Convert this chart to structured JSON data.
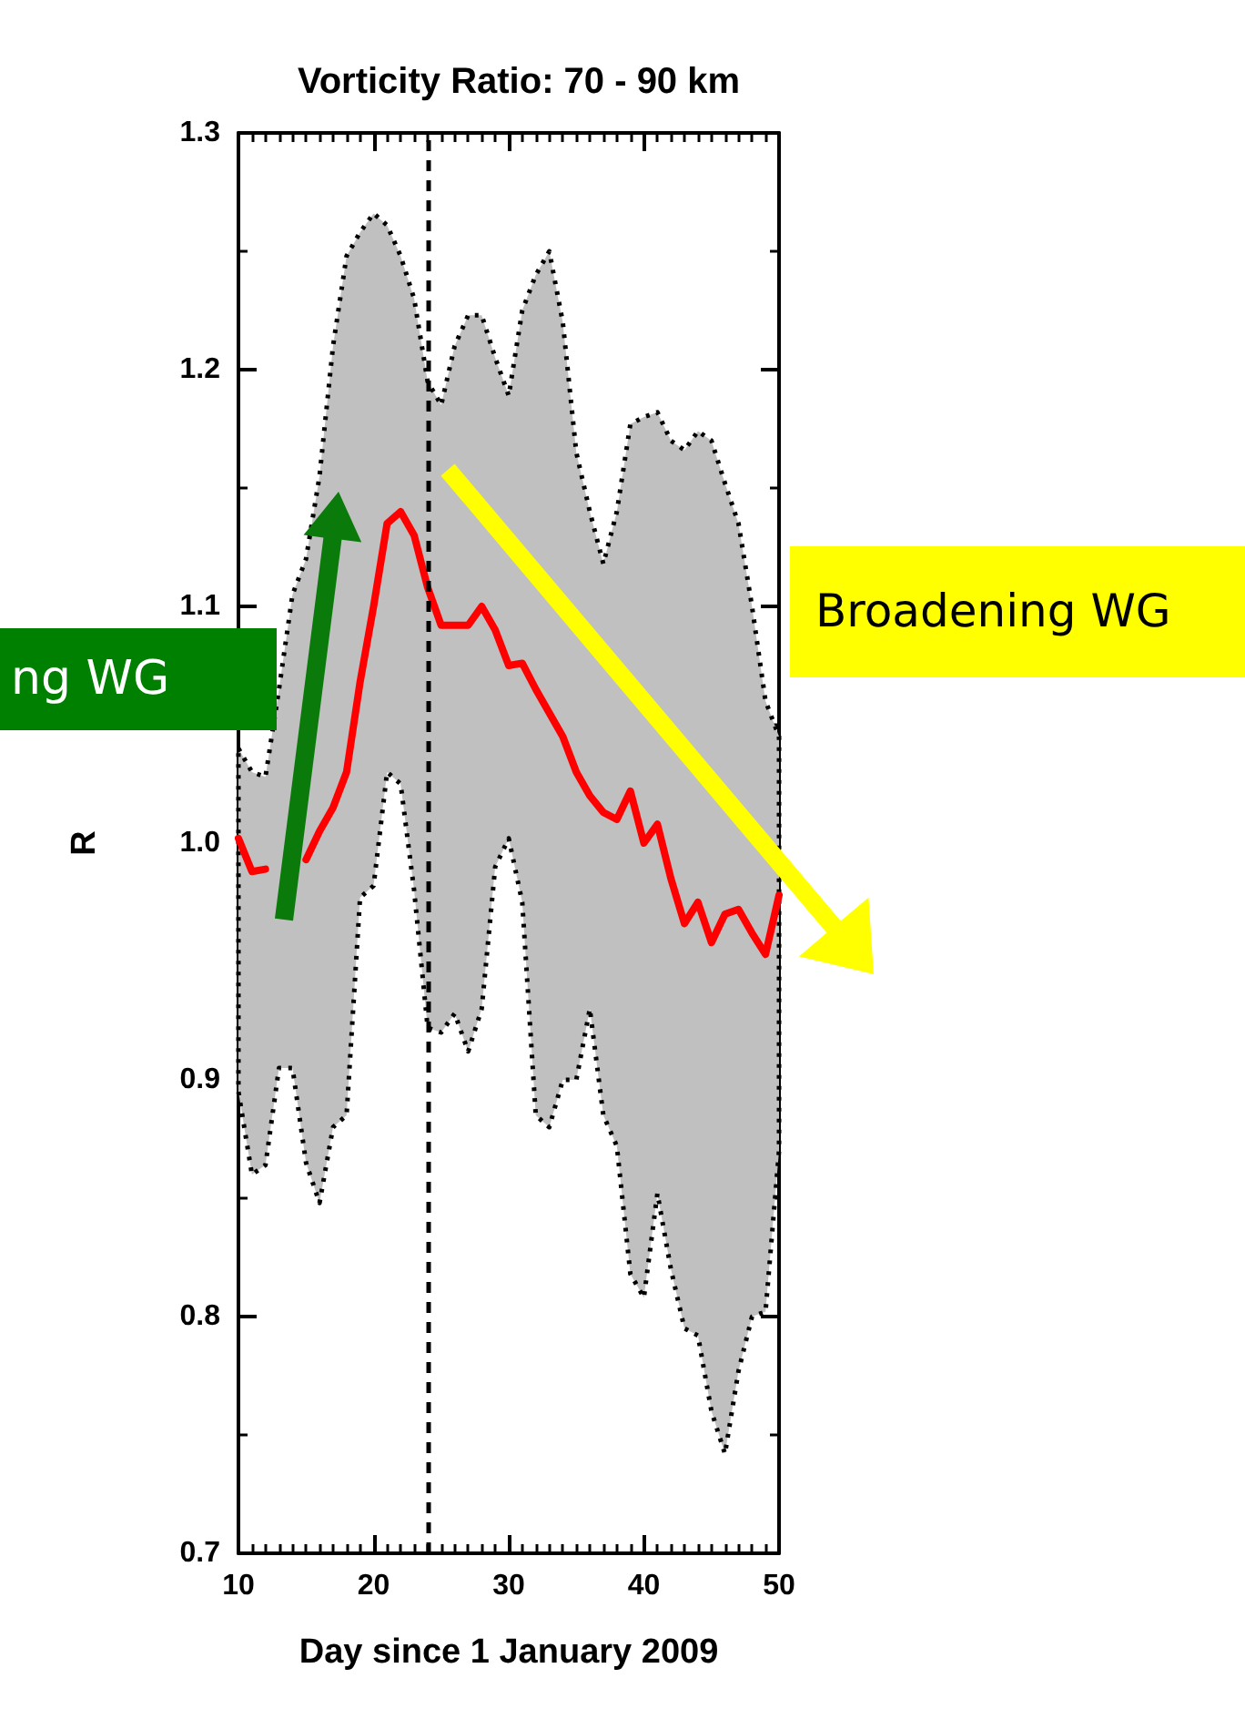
{
  "chart_data": {
    "type": "line",
    "title": "Vorticity Ratio: 70 - 90 km",
    "xlabel": "Day since 1 January 2009",
    "ylabel": "R",
    "x": [
      10,
      11,
      12,
      13,
      14,
      15,
      16,
      17,
      18,
      19,
      20,
      21,
      22,
      23,
      24,
      25,
      26,
      27,
      28,
      29,
      30,
      31,
      32,
      33,
      34,
      35,
      36,
      37,
      38,
      39,
      40,
      41,
      42,
      43,
      44,
      45,
      46,
      47,
      48,
      49,
      50
    ],
    "series": [
      {
        "color": "#ff0000",
        "line_style": "solid",
        "values": [
          1.002,
          0.988,
          0.989,
          null,
          null,
          0.993,
          1.005,
          1.015,
          1.03,
          1.068,
          1.1,
          1.135,
          1.14,
          1.13,
          1.108,
          1.092,
          1.092,
          1.092,
          1.1,
          1.09,
          1.075,
          1.076,
          1.065,
          1.055,
          1.045,
          1.03,
          1.02,
          1.013,
          1.01,
          1.022,
          1.0,
          1.008,
          0.985,
          0.966,
          0.975,
          0.958,
          0.97,
          0.972,
          0.962,
          0.953,
          0.978
        ],
        "upper": [
          1.04,
          1.03,
          1.028,
          1.065,
          1.105,
          1.12,
          1.155,
          1.21,
          1.248,
          1.258,
          1.266,
          1.261,
          1.248,
          1.23,
          1.195,
          1.185,
          1.21,
          1.223,
          1.223,
          1.205,
          1.189,
          1.225,
          1.24,
          1.25,
          1.22,
          1.165,
          1.14,
          1.118,
          1.14,
          1.177,
          1.18,
          1.182,
          1.17,
          1.166,
          1.174,
          1.17,
          1.152,
          1.135,
          1.1,
          1.06,
          1.045
        ],
        "lower": [
          0.895,
          0.86,
          0.864,
          0.905,
          0.905,
          0.865,
          0.848,
          0.88,
          0.885,
          0.977,
          0.982,
          1.03,
          1.025,
          0.98,
          0.922,
          0.92,
          0.928,
          0.912,
          0.93,
          0.99,
          1.002,
          0.975,
          0.885,
          0.88,
          0.9,
          0.9,
          0.93,
          0.885,
          0.872,
          0.818,
          0.808,
          0.852,
          0.82,
          0.795,
          0.792,
          0.76,
          0.742,
          0.777,
          0.8,
          0.802,
          0.87
        ]
      }
    ],
    "xlim": [
      10,
      50
    ],
    "xticks": [
      10,
      20,
      30,
      40,
      50
    ],
    "ylim": [
      0.7,
      1.3
    ],
    "yticks": [
      0.7,
      0.8,
      0.9,
      {
        "value": 1,
        "label": "1.0"
      },
      1.1,
      1.2,
      1.3
    ],
    "ref_lines": [
      {
        "axis": "x",
        "value": 24,
        "line_style": "dashed",
        "color": "#000000"
      }
    ],
    "annotations": [
      "ng WG",
      "Broadening WG"
    ],
    "grid": false,
    "marker": "none"
  }
}
